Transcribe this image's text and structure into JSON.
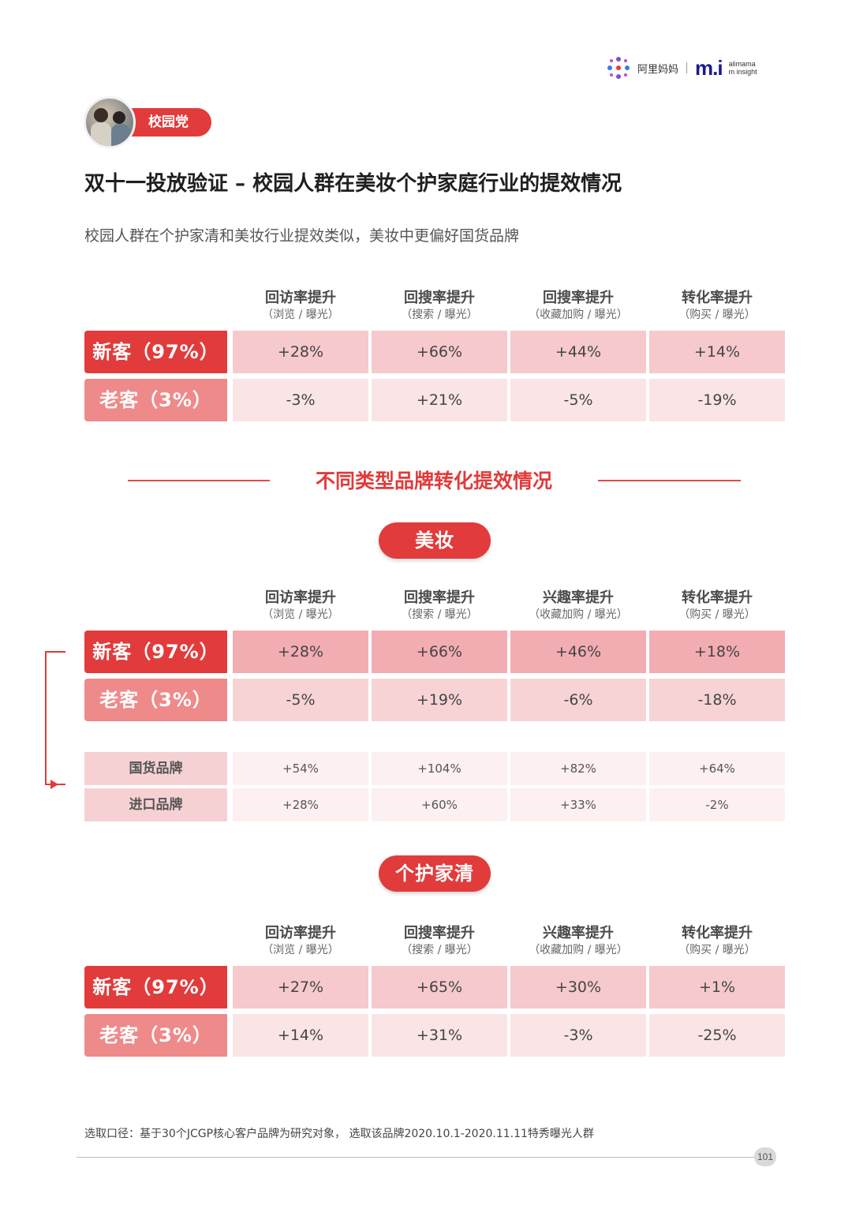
{
  "header": {
    "logo_text": "阿里妈妈",
    "mi_logo": "m.i",
    "mi_sub1": "alimama",
    "mi_sub2": "m insight"
  },
  "tag": "校园党",
  "title": "双十一投放验证 – 校园人群在美妆个护家庭行业的提效情况",
  "subtitle": "校园人群在个护家清和美妆行业提效类似，美妆中更偏好国货品牌",
  "table1": {
    "columns": [
      {
        "h1": "回访率提升",
        "h2": "（浏览 / 曝光）"
      },
      {
        "h1": "回搜率提升",
        "h2": "（搜索 / 曝光）"
      },
      {
        "h1": "回搜率提升",
        "h2": "（收藏加购 / 曝光）"
      },
      {
        "h1": "转化率提升",
        "h2": "（购买 / 曝光）"
      }
    ],
    "rows": [
      {
        "label": "新客（97%）",
        "values": [
          "+28%",
          "+66%",
          "+44%",
          "+14%"
        ]
      },
      {
        "label": "老客（3%）",
        "values": [
          "-3%",
          "+21%",
          "-5%",
          "-19%"
        ]
      }
    ]
  },
  "section_title": "不同类型品牌转化提效情况",
  "beauty": {
    "pill": "美妆",
    "columns": [
      {
        "h1": "回访率提升",
        "h2": "（浏览 / 曝光）"
      },
      {
        "h1": "回搜率提升",
        "h2": "（搜索 / 曝光）"
      },
      {
        "h1": "兴趣率提升",
        "h2": "（收藏加购 / 曝光）"
      },
      {
        "h1": "转化率提升",
        "h2": "（购买 / 曝光）"
      }
    ],
    "rows": [
      {
        "label": "新客（97%）",
        "values": [
          "+28%",
          "+66%",
          "+46%",
          "+18%"
        ]
      },
      {
        "label": "老客（3%）",
        "values": [
          "-5%",
          "+19%",
          "-6%",
          "-18%"
        ]
      }
    ],
    "brand_rows": [
      {
        "label": "国货品牌",
        "values": [
          "+54%",
          "+104%",
          "+82%",
          "+64%"
        ]
      },
      {
        "label": "进口品牌",
        "values": [
          "+28%",
          "+60%",
          "+33%",
          "-2%"
        ]
      }
    ]
  },
  "personal": {
    "pill": "个护家清",
    "columns": [
      {
        "h1": "回访率提升",
        "h2": "（浏览 / 曝光）"
      },
      {
        "h1": "回搜率提升",
        "h2": "（搜索 / 曝光）"
      },
      {
        "h1": "兴趣率提升",
        "h2": "（收藏加购 / 曝光）"
      },
      {
        "h1": "转化率提升",
        "h2": "（购买 / 曝光）"
      }
    ],
    "rows": [
      {
        "label": "新客（97%）",
        "values": [
          "+27%",
          "+65%",
          "+30%",
          "+1%"
        ]
      },
      {
        "label": "老客（3%）",
        "values": [
          "+14%",
          "+31%",
          "-3%",
          "-25%"
        ]
      }
    ]
  },
  "footnote": "选取口径：基于30个JCGP核心客户品牌为研究对象， 选取该品牌2020.10.1-2020.11.11特秀曝光人群",
  "page_number": "101",
  "colors": {
    "accent": "#e23b3b",
    "accent_light": "#ef8a8a",
    "cell_new": "#f6c9cc",
    "cell_old": "#fbe4e5"
  }
}
